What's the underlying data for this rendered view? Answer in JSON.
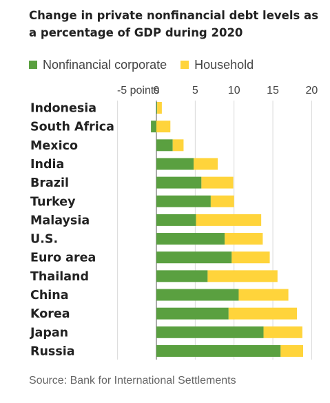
{
  "chart_data": {
    "type": "bar",
    "stacked": true,
    "orientation": "horizontal",
    "title": "Change in private nonfinancial debt levels as a percentage of GDP during 2020",
    "xlim": [
      -5,
      20
    ],
    "x_ticks": [
      {
        "value": -5,
        "label": "-5 points"
      },
      {
        "value": 0,
        "label": "0"
      },
      {
        "value": 5,
        "label": "5"
      },
      {
        "value": 10,
        "label": "10"
      },
      {
        "value": 15,
        "label": "15"
      },
      {
        "value": 20,
        "label": "20"
      }
    ],
    "grid": true,
    "legend_position": "top",
    "categories": [
      "Indonesia",
      "South Africa",
      "Mexico",
      "India",
      "Brazil",
      "Turkey",
      "Malaysia",
      "U.S.",
      "Euro area",
      "Thailand",
      "China",
      "Korea",
      "Japan",
      "Russia"
    ],
    "series": [
      {
        "name": "Nonfinancial corporate",
        "color": "#5aa040",
        "values": [
          0.1,
          -0.7,
          2.1,
          4.8,
          5.8,
          7.0,
          5.1,
          8.8,
          9.7,
          6.6,
          10.6,
          9.3,
          13.8,
          16.0
        ]
      },
      {
        "name": "Household",
        "color": "#ffd43b",
        "values": [
          0.6,
          1.8,
          1.4,
          3.1,
          4.1,
          3.0,
          8.4,
          4.9,
          4.9,
          9.0,
          6.4,
          8.8,
          5.0,
          2.9
        ]
      }
    ]
  },
  "source": "Source: Bank for International Settlements"
}
